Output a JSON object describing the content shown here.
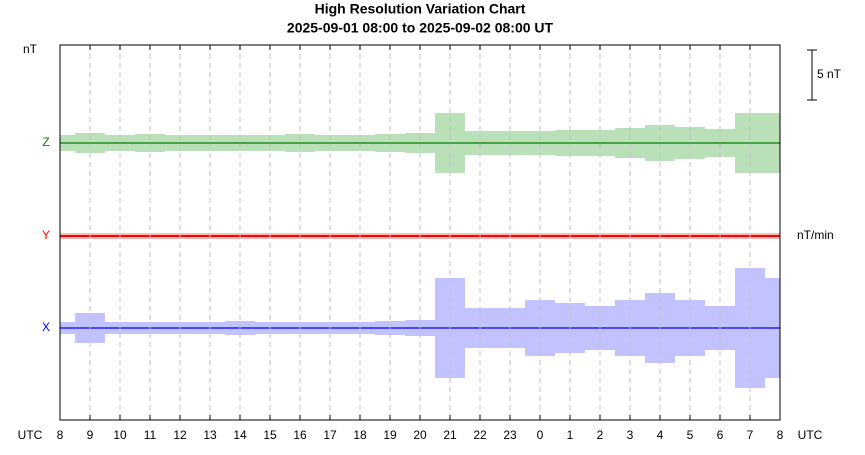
{
  "chart_data": {
    "type": "variation",
    "title": "High Resolution Variation Chart",
    "subtitle": "2025-09-01 08:00 to 2025-09-02 08:00 UT",
    "y_unit": "nT",
    "x_label": "UTC",
    "rate_unit": "nT/min",
    "scale_bar": {
      "value": 5,
      "label": "5 nT"
    },
    "grid": true,
    "categories": [
      "8",
      "9",
      "10",
      "11",
      "12",
      "13",
      "14",
      "15",
      "16",
      "17",
      "18",
      "19",
      "20",
      "21",
      "22",
      "23",
      "0",
      "1",
      "2",
      "3",
      "4",
      "5",
      "6",
      "7",
      "8"
    ],
    "series": [
      {
        "name": "Z",
        "color": "#008000",
        "band_color": "#66bb66",
        "values": [
          0.8,
          1.0,
          0.8,
          0.9,
          0.8,
          0.8,
          0.8,
          0.8,
          0.9,
          0.8,
          0.8,
          0.9,
          1.0,
          3.0,
          1.2,
          1.2,
          1.2,
          1.3,
          1.3,
          1.5,
          1.8,
          1.6,
          1.4,
          3.0,
          3.0
        ]
      },
      {
        "name": "Y",
        "color": "#ff0000",
        "band_color": "#ff6666",
        "values": [
          0.3,
          0.3,
          0.3,
          0.3,
          0.3,
          0.3,
          0.3,
          0.3,
          0.3,
          0.3,
          0.3,
          0.3,
          0.3,
          0.3,
          0.3,
          0.3,
          0.3,
          0.3,
          0.3,
          0.3,
          0.3,
          0.3,
          0.3,
          0.3,
          0.3
        ]
      },
      {
        "name": "X",
        "color": "#0000ff",
        "band_color": "#7777ff",
        "values": [
          0.6,
          1.5,
          0.6,
          0.6,
          0.6,
          0.6,
          0.7,
          0.6,
          0.6,
          0.6,
          0.6,
          0.7,
          0.8,
          5.0,
          2.0,
          2.0,
          2.8,
          2.5,
          2.2,
          2.8,
          3.5,
          2.8,
          2.2,
          6.0,
          5.0
        ]
      }
    ]
  }
}
